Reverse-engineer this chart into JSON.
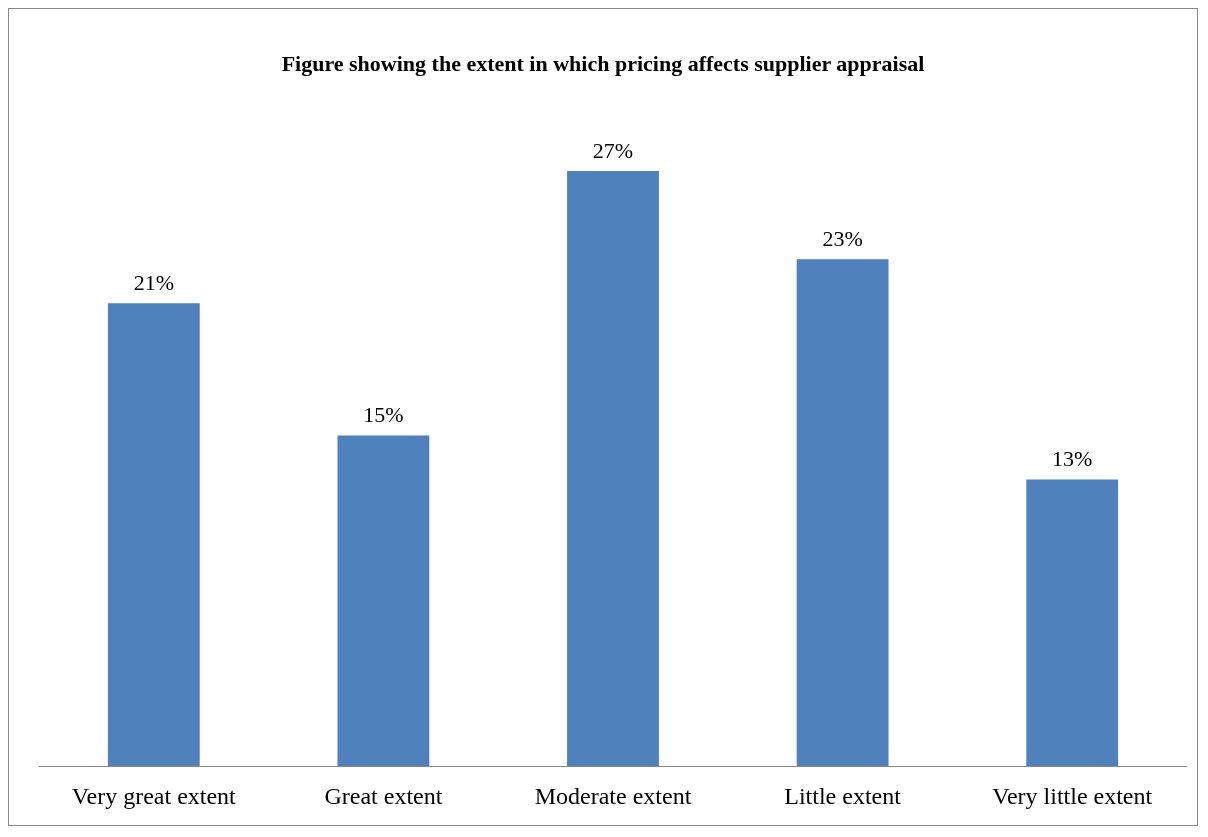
{
  "chart_data": {
    "type": "bar",
    "title": "Figure showing the extent in which pricing affects supplier appraisal",
    "categories": [
      "Very great extent",
      "Great extent",
      "Moderate extent",
      "Little extent",
      "Very little extent"
    ],
    "values": [
      21,
      15,
      27,
      23,
      13
    ],
    "value_labels": [
      "21%",
      "15%",
      "27%",
      "23%",
      "13%"
    ],
    "color": "#4f81bd"
  }
}
